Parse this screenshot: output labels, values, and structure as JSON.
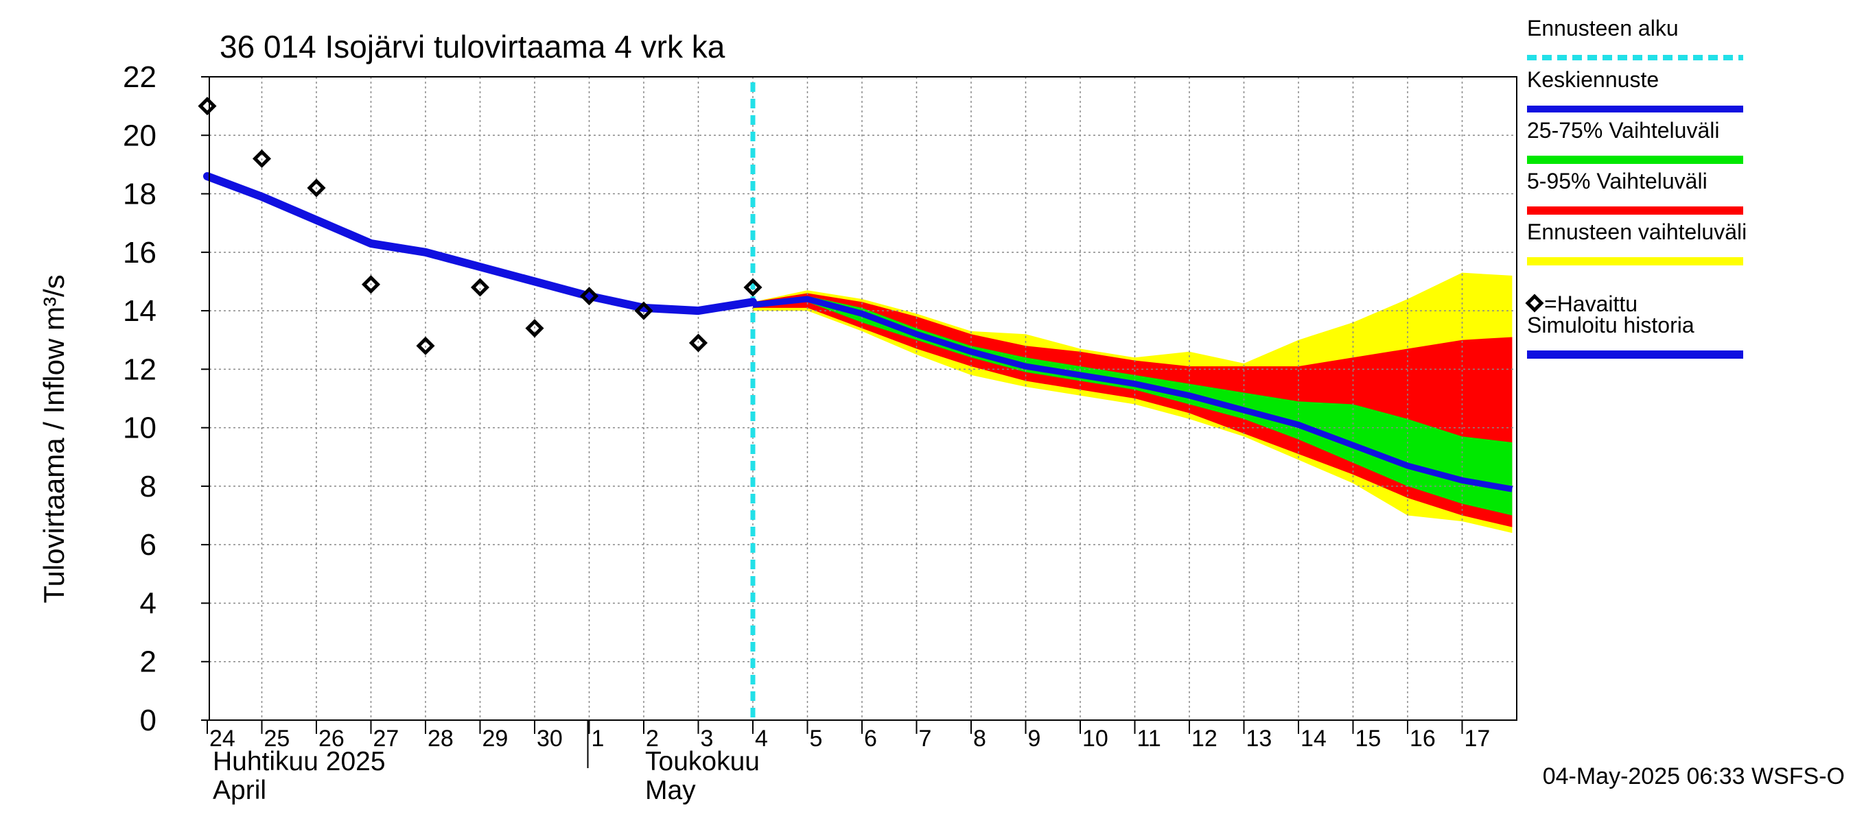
{
  "colors": {
    "forecast_start": "#22e0e8",
    "mean_forecast": "#1010e0",
    "band_25_75": "#00e800",
    "band_5_95": "#ff0000",
    "band_full": "#ffff00",
    "observed": "#000000",
    "simulated": "#1010e0",
    "grid": "#888888"
  },
  "chart_data": {
    "type": "line",
    "title": "36 014 Isojärvi tulovirtaama 4 vrk ka",
    "ylabel": "Tulovirtaama / Inflow    m³/s",
    "ylim": [
      0,
      22
    ],
    "yticks": [
      "0",
      "2",
      "4",
      "6",
      "8",
      "10",
      "12",
      "14",
      "16",
      "18",
      "20",
      "22"
    ],
    "x_range_days": [
      "2025-04-24",
      "2025-05-17"
    ],
    "xtick_labels": [
      "24",
      "25",
      "26",
      "27",
      "28",
      "29",
      "30",
      "1",
      "2",
      "3",
      "4",
      "5",
      "6",
      "7",
      "8",
      "9",
      "10",
      "11",
      "12",
      "13",
      "14",
      "15",
      "16",
      "17"
    ],
    "month_labels": {
      "april_fi": "Huhtikuu  2025",
      "april_en": "April",
      "may_fi": "Toukokuu",
      "may_en": "May"
    },
    "forecast_start_date": "2025-05-04",
    "grid": true,
    "legend_position": "right",
    "legend": [
      {
        "key": "forecast_start",
        "label": "Ennusteen alku"
      },
      {
        "key": "mean",
        "label": "Keskiennuste"
      },
      {
        "key": "band_25_75",
        "label": "25-75% Vaihteluväli"
      },
      {
        "key": "band_5_95",
        "label": "5-95% Vaihteluväli"
      },
      {
        "key": "band_full",
        "label": "Ennusteen vaihteluväli"
      },
      {
        "key": "observed",
        "label": "=Havaittu"
      },
      {
        "key": "simulated",
        "label": "Simuloitu historia"
      }
    ],
    "observed": {
      "x": [
        "2025-04-24",
        "2025-04-25",
        "2025-04-26",
        "2025-04-27",
        "2025-04-28",
        "2025-04-29",
        "2025-04-30",
        "2025-05-01",
        "2025-05-02",
        "2025-05-03",
        "2025-05-04"
      ],
      "y": [
        21.0,
        19.2,
        18.2,
        14.9,
        12.8,
        14.8,
        13.4,
        14.5,
        14.0,
        12.9,
        14.8
      ]
    },
    "simulated_history": {
      "x": [
        "2025-04-24",
        "2025-04-25",
        "2025-04-26",
        "2025-04-27",
        "2025-04-28",
        "2025-04-29",
        "2025-04-30",
        "2025-05-01",
        "2025-05-02",
        "2025-05-03",
        "2025-05-04"
      ],
      "y": [
        18.6,
        17.9,
        17.1,
        16.3,
        16.0,
        15.5,
        15.0,
        14.5,
        14.1,
        14.0,
        14.3
      ]
    },
    "forecast": {
      "x": [
        "2025-05-04",
        "2025-05-05",
        "2025-05-06",
        "2025-05-07",
        "2025-05-08",
        "2025-05-09",
        "2025-05-10",
        "2025-05-11",
        "2025-05-12",
        "2025-05-13",
        "2025-05-14",
        "2025-05-15",
        "2025-05-16",
        "2025-05-17",
        "2025-05-17T22:00"
      ],
      "mean": [
        14.2,
        14.4,
        13.9,
        13.2,
        12.6,
        12.1,
        11.8,
        11.5,
        11.1,
        10.6,
        10.1,
        9.4,
        8.7,
        8.2,
        7.9
      ],
      "p25": [
        14.2,
        14.3,
        13.6,
        13.0,
        12.4,
        11.9,
        11.6,
        11.3,
        10.8,
        10.3,
        9.6,
        8.8,
        8.0,
        7.4,
        7.0
      ],
      "p75": [
        14.3,
        14.5,
        14.1,
        13.4,
        12.8,
        12.4,
        12.1,
        11.8,
        11.5,
        11.2,
        10.9,
        10.8,
        10.3,
        9.7,
        9.5
      ],
      "p5": [
        14.1,
        14.1,
        13.4,
        12.7,
        12.1,
        11.6,
        11.3,
        11.0,
        10.5,
        9.8,
        9.1,
        8.4,
        7.6,
        7.0,
        6.6
      ],
      "p95": [
        14.3,
        14.6,
        14.3,
        13.8,
        13.2,
        12.8,
        12.6,
        12.3,
        12.1,
        12.1,
        12.1,
        12.4,
        12.7,
        13.0,
        13.1
      ],
      "min": [
        14.0,
        14.0,
        13.3,
        12.5,
        11.8,
        11.4,
        11.1,
        10.8,
        10.3,
        9.7,
        8.9,
        8.1,
        7.0,
        6.8,
        6.4
      ],
      "max": [
        14.3,
        14.7,
        14.4,
        13.9,
        13.3,
        13.2,
        12.7,
        12.4,
        12.6,
        12.2,
        13.0,
        13.6,
        14.4,
        15.3,
        15.2
      ]
    }
  },
  "footer": {
    "timestamp": "04-May-2025 06:33 WSFS-O"
  }
}
